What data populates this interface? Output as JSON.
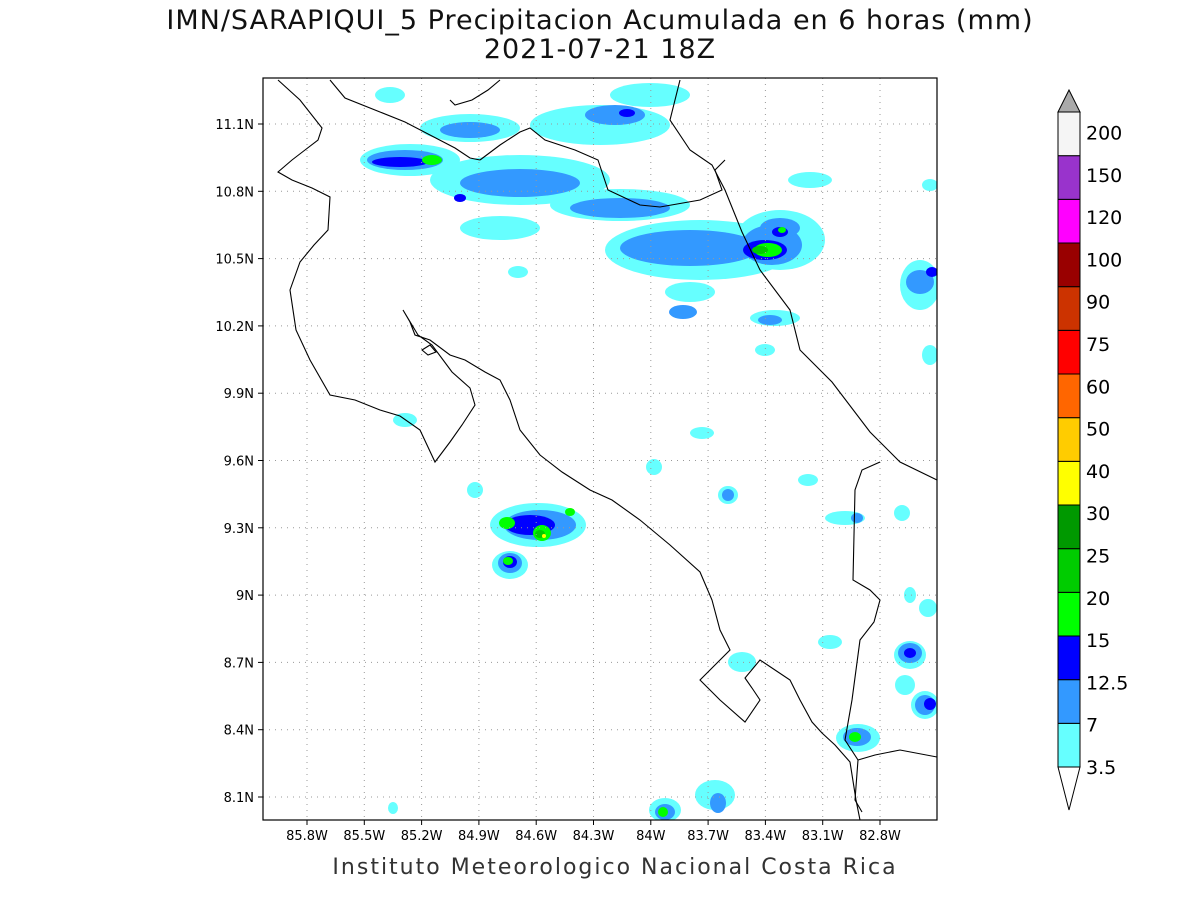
{
  "title": {
    "line1": "IMN/SARAPIQUI_5 Precipitacion Acumulada en 6 horas (mm)",
    "line2": "2021-07-21 18Z"
  },
  "footer": "Instituto Meteorologico Nacional Costa Rica",
  "axes": {
    "lon_ticks": [
      "85.8W",
      "85.5W",
      "85.2W",
      "84.9W",
      "84.6W",
      "84.3W",
      "84W",
      "83.7W",
      "83.4W",
      "83.1W",
      "82.8W"
    ],
    "lat_ticks": [
      "11.1N",
      "10.8N",
      "10.5N",
      "10.2N",
      "9.9N",
      "9.6N",
      "9.3N",
      "9N",
      "8.7N",
      "8.4N",
      "8.1N"
    ]
  },
  "colorbar": {
    "labels": [
      "3.5",
      "7",
      "12.5",
      "15",
      "20",
      "25",
      "30",
      "40",
      "50",
      "60",
      "75",
      "90",
      "100",
      "120",
      "150",
      "200"
    ],
    "colors": [
      "#66ffff",
      "#3399ff",
      "#0000ff",
      "#00ff00",
      "#00cc00",
      "#009900",
      "#ffff00",
      "#ffcc00",
      "#ff6600",
      "#ff0000",
      "#cc3300",
      "#990000",
      "#ff00ff",
      "#9933cc",
      "#f5f5f5"
    ],
    "over_color": "#aaaaaa",
    "under_color": "#ffffff"
  }
}
